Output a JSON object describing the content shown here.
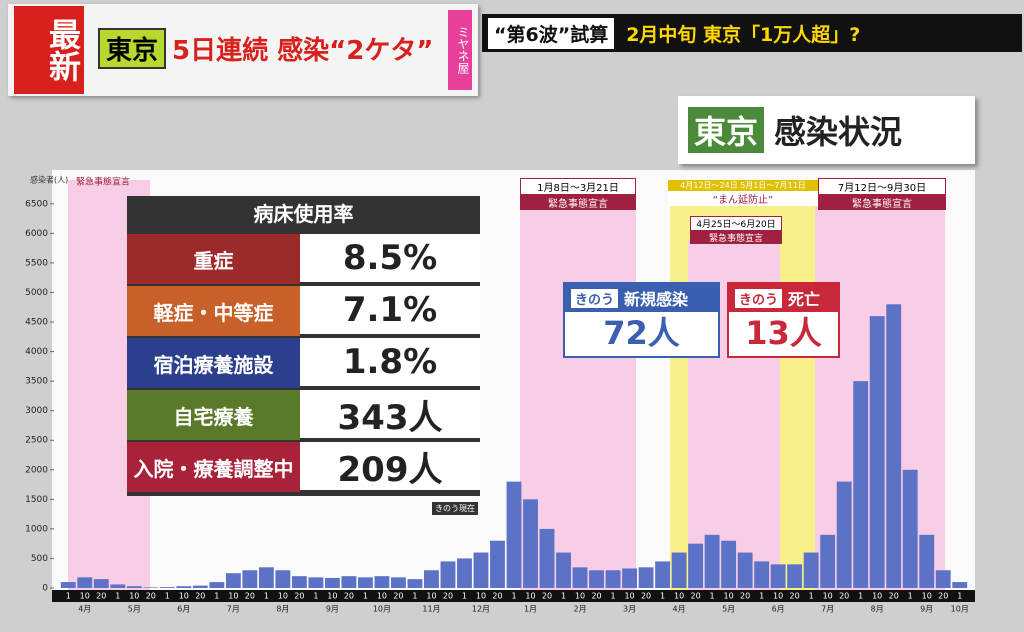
{
  "header": {
    "badge": "最新",
    "topic": "東京",
    "headline": "5日連続 感染“2ケタ”",
    "side": "ミヤネ屋",
    "ticker_left": "“第6波”試算",
    "ticker_right": "2月中旬 東京「1万人超」?"
  },
  "panel_title": {
    "place": "東京",
    "text": "感染状況"
  },
  "bed_table": {
    "title": "病床使用率",
    "rows": [
      {
        "label": "重症",
        "value": "8.5%"
      },
      {
        "label": "軽症・中等症",
        "value": "7.1%"
      },
      {
        "label": "宿泊療養施設",
        "value": "1.8%"
      },
      {
        "label": "自宅療養",
        "value": "343人"
      },
      {
        "label": "入院・療養調整中",
        "value": "209人"
      }
    ],
    "note": "きのう現在"
  },
  "cards": [
    {
      "label": "きのう",
      "title": "新規感染",
      "value": "72人"
    },
    {
      "label": "きのう",
      "title": "死亡",
      "value": "13人"
    }
  ],
  "periods": [
    {
      "label": "緊急事態宣言"
    },
    {
      "dates": "1月8日～3月21日",
      "label": "緊急事態宣言"
    },
    {
      "dates": "4月12日～24日 5月1日～7月11日",
      "label": "“まん延防止”"
    },
    {
      "dates": "4月25日～6月20日",
      "label": "緊急事態宣言"
    },
    {
      "dates": "7月12日～9月30日",
      "label": "緊急事態宣言"
    }
  ],
  "chart_data": {
    "type": "bar",
    "y_label": "感染者(人)",
    "color": "#5b72c6",
    "months": [
      "4月",
      "5月",
      "6月",
      "7月",
      "8月",
      "9月",
      "10月",
      "11月",
      "12月",
      "1月",
      "2月",
      "3月",
      "4月",
      "5月",
      "6月",
      "7月",
      "8月",
      "9月",
      "10月"
    ],
    "categories": [
      "1",
      "10",
      "20",
      "1",
      "10",
      "20",
      "1",
      "10",
      "20",
      "1",
      "10",
      "20",
      "1",
      "10",
      "20",
      "1",
      "10",
      "20",
      "1",
      "10",
      "20",
      "1",
      "10",
      "20",
      "1",
      "10",
      "20",
      "1",
      "10",
      "20",
      "1",
      "10",
      "20",
      "1",
      "10",
      "20",
      "1",
      "10",
      "20",
      "1",
      "10",
      "20",
      "1",
      "10",
      "20",
      "1",
      "10",
      "20",
      "1",
      "10",
      "20",
      "1",
      "10",
      "20",
      "1"
    ],
    "values": [
      100,
      180,
      150,
      60,
      30,
      10,
      15,
      30,
      40,
      100,
      250,
      300,
      350,
      300,
      200,
      180,
      170,
      200,
      180,
      200,
      180,
      150,
      300,
      450,
      500,
      600,
      800,
      1800,
      1500,
      1000,
      600,
      350,
      300,
      300,
      330,
      350,
      450,
      600,
      750,
      900,
      800,
      600,
      450,
      400,
      400,
      600,
      900,
      1800,
      3500,
      4600,
      4800,
      2000,
      900,
      300,
      100
    ],
    "ylim": [
      0,
      6700
    ],
    "yticks": [
      0,
      500,
      1000,
      1500,
      2000,
      2500,
      3000,
      3500,
      4000,
      4500,
      5000,
      5500,
      6000,
      6500
    ]
  }
}
